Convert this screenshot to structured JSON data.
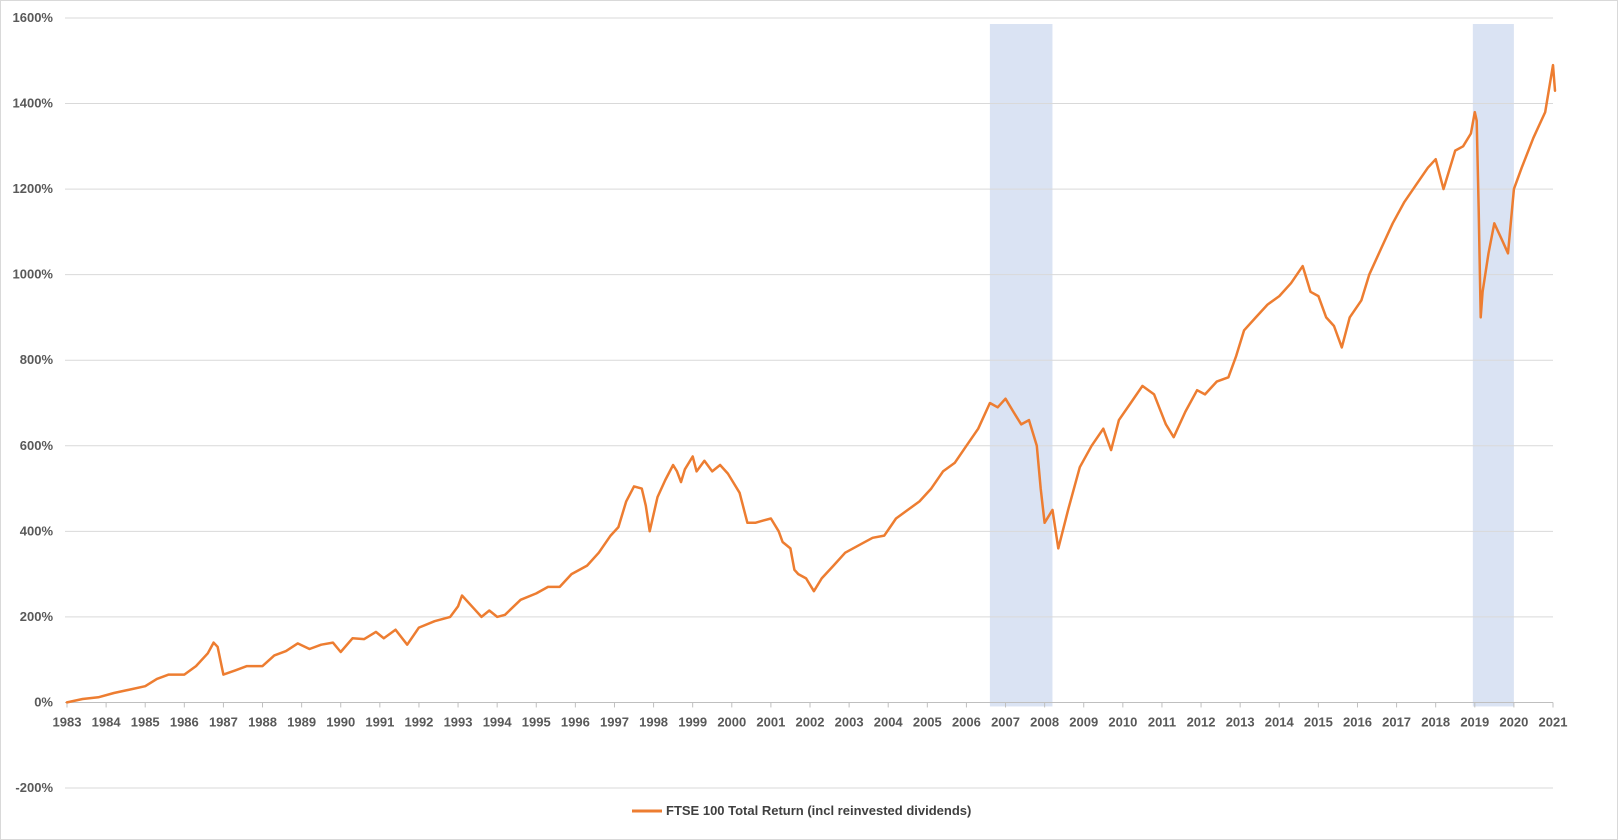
{
  "chart_data": {
    "type": "line",
    "title": "",
    "xlabel": "",
    "ylabel": "",
    "ylim": [
      -200,
      1600
    ],
    "xlim": [
      1983,
      2021
    ],
    "y_ticks": [
      -200,
      0,
      200,
      400,
      600,
      800,
      1000,
      1200,
      1400,
      1600
    ],
    "y_tick_labels": [
      "-200%",
      "0%",
      "200%",
      "400%",
      "600%",
      "800%",
      "1000%",
      "1200%",
      "1400%",
      "1600%"
    ],
    "x_ticks": [
      1983,
      1984,
      1985,
      1986,
      1987,
      1988,
      1989,
      1990,
      1991,
      1992,
      1993,
      1994,
      1995,
      1996,
      1997,
      1998,
      1999,
      2000,
      2001,
      2002,
      2003,
      2004,
      2005,
      2006,
      2007,
      2008,
      2009,
      2010,
      2011,
      2012,
      2013,
      2014,
      2015,
      2016,
      2017,
      2018,
      2019,
      2020,
      2021
    ],
    "x_tick_labels": [
      "1983",
      "1984",
      "1985",
      "1986",
      "1987",
      "1988",
      "1989",
      "1990",
      "1991",
      "1992",
      "1993",
      "1994",
      "1995",
      "1996",
      "1997",
      "1998",
      "1999",
      "2000",
      "2001",
      "2002",
      "2003",
      "2004",
      "2005",
      "2006",
      "2007",
      "2008",
      "2009",
      "2010",
      "2011",
      "2012",
      "2013",
      "2014",
      "2015",
      "2016",
      "2017",
      "2018",
      "2019",
      "2020",
      "2021"
    ],
    "grid": "horizontal",
    "legend_position": "bottom",
    "shaded_regions": [
      {
        "x0": 2006.6,
        "x1": 2008.2,
        "color": "#dae3f3"
      },
      {
        "x0": 2018.95,
        "x1": 2020.0,
        "color": "#dae3f3"
      }
    ],
    "series": [
      {
        "name": "FTSE 100 Total Return (incl reinvested dividends)",
        "color": "#ed7d31",
        "points": [
          [
            1983.0,
            0
          ],
          [
            1983.4,
            8
          ],
          [
            1983.8,
            12
          ],
          [
            1984.2,
            22
          ],
          [
            1984.6,
            30
          ],
          [
            1985.0,
            38
          ],
          [
            1985.3,
            55
          ],
          [
            1985.6,
            65
          ],
          [
            1986.0,
            65
          ],
          [
            1986.3,
            85
          ],
          [
            1986.6,
            115
          ],
          [
            1986.75,
            140
          ],
          [
            1986.85,
            130
          ],
          [
            1987.0,
            65
          ],
          [
            1987.3,
            75
          ],
          [
            1987.6,
            85
          ],
          [
            1988.0,
            85
          ],
          [
            1988.3,
            110
          ],
          [
            1988.6,
            120
          ],
          [
            1988.9,
            138
          ],
          [
            1989.2,
            125
          ],
          [
            1989.5,
            135
          ],
          [
            1989.8,
            140
          ],
          [
            1990.0,
            118
          ],
          [
            1990.3,
            150
          ],
          [
            1990.6,
            148
          ],
          [
            1990.9,
            165
          ],
          [
            1991.1,
            150
          ],
          [
            1991.4,
            170
          ],
          [
            1991.7,
            135
          ],
          [
            1992.0,
            175
          ],
          [
            1992.4,
            190
          ],
          [
            1992.8,
            200
          ],
          [
            1993.0,
            225
          ],
          [
            1993.1,
            250
          ],
          [
            1993.4,
            220
          ],
          [
            1993.6,
            200
          ],
          [
            1993.8,
            215
          ],
          [
            1994.0,
            200
          ],
          [
            1994.2,
            205
          ],
          [
            1994.6,
            240
          ],
          [
            1995.0,
            255
          ],
          [
            1995.3,
            270
          ],
          [
            1995.6,
            270
          ],
          [
            1995.9,
            300
          ],
          [
            1996.3,
            320
          ],
          [
            1996.6,
            350
          ],
          [
            1996.9,
            390
          ],
          [
            1997.1,
            410
          ],
          [
            1997.3,
            470
          ],
          [
            1997.5,
            505
          ],
          [
            1997.7,
            500
          ],
          [
            1997.8,
            460
          ],
          [
            1997.9,
            400
          ],
          [
            1998.1,
            480
          ],
          [
            1998.3,
            520
          ],
          [
            1998.5,
            555
          ],
          [
            1998.6,
            540
          ],
          [
            1998.7,
            515
          ],
          [
            1998.8,
            545
          ],
          [
            1999.0,
            575
          ],
          [
            1999.1,
            540
          ],
          [
            1999.3,
            565
          ],
          [
            1999.5,
            540
          ],
          [
            1999.7,
            555
          ],
          [
            1999.9,
            535
          ],
          [
            2000.0,
            520
          ],
          [
            2000.2,
            490
          ],
          [
            2000.4,
            420
          ],
          [
            2000.6,
            420
          ],
          [
            2000.8,
            425
          ],
          [
            2001.0,
            430
          ],
          [
            2001.2,
            400
          ],
          [
            2001.3,
            375
          ],
          [
            2001.5,
            360
          ],
          [
            2001.6,
            310
          ],
          [
            2001.7,
            300
          ],
          [
            2001.9,
            290
          ],
          [
            2002.1,
            260
          ],
          [
            2002.3,
            290
          ],
          [
            2002.6,
            320
          ],
          [
            2002.9,
            350
          ],
          [
            2003.3,
            370
          ],
          [
            2003.6,
            385
          ],
          [
            2003.9,
            390
          ],
          [
            2004.2,
            430
          ],
          [
            2004.5,
            450
          ],
          [
            2004.8,
            470
          ],
          [
            2005.1,
            500
          ],
          [
            2005.4,
            540
          ],
          [
            2005.7,
            560
          ],
          [
            2006.0,
            600
          ],
          [
            2006.3,
            640
          ],
          [
            2006.6,
            700
          ],
          [
            2006.8,
            690
          ],
          [
            2007.0,
            710
          ],
          [
            2007.2,
            680
          ],
          [
            2007.4,
            650
          ],
          [
            2007.6,
            660
          ],
          [
            2007.8,
            600
          ],
          [
            2007.9,
            500
          ],
          [
            2008.0,
            420
          ],
          [
            2008.2,
            450
          ],
          [
            2008.35,
            360
          ],
          [
            2008.6,
            450
          ],
          [
            2008.9,
            550
          ],
          [
            2009.2,
            600
          ],
          [
            2009.5,
            640
          ],
          [
            2009.7,
            590
          ],
          [
            2009.9,
            660
          ],
          [
            2010.2,
            700
          ],
          [
            2010.5,
            740
          ],
          [
            2010.8,
            720
          ],
          [
            2011.1,
            650
          ],
          [
            2011.3,
            620
          ],
          [
            2011.6,
            680
          ],
          [
            2011.9,
            730
          ],
          [
            2012.1,
            720
          ],
          [
            2012.4,
            750
          ],
          [
            2012.7,
            760
          ],
          [
            2012.9,
            810
          ],
          [
            2013.1,
            870
          ],
          [
            2013.4,
            900
          ],
          [
            2013.7,
            930
          ],
          [
            2014.0,
            950
          ],
          [
            2014.3,
            980
          ],
          [
            2014.6,
            1020
          ],
          [
            2014.8,
            960
          ],
          [
            2015.0,
            950
          ],
          [
            2015.2,
            900
          ],
          [
            2015.4,
            880
          ],
          [
            2015.6,
            830
          ],
          [
            2015.8,
            900
          ],
          [
            2016.1,
            940
          ],
          [
            2016.3,
            1000
          ],
          [
            2016.6,
            1060
          ],
          [
            2016.9,
            1120
          ],
          [
            2017.2,
            1170
          ],
          [
            2017.5,
            1210
          ],
          [
            2017.8,
            1250
          ],
          [
            2018.0,
            1270
          ],
          [
            2018.2,
            1200
          ],
          [
            2018.5,
            1290
          ],
          [
            2018.7,
            1300
          ],
          [
            2018.9,
            1330
          ],
          [
            2019.0,
            1380
          ],
          [
            2019.05,
            1360
          ],
          [
            2019.1,
            1150
          ],
          [
            2019.15,
            900
          ],
          [
            2019.2,
            960
          ],
          [
            2019.35,
            1050
          ],
          [
            2019.5,
            1120
          ],
          [
            2019.7,
            1080
          ],
          [
            2019.85,
            1050
          ],
          [
            2020.0,
            1200
          ],
          [
            2020.2,
            1250
          ],
          [
            2020.5,
            1320
          ],
          [
            2020.8,
            1380
          ],
          [
            2021.0,
            1490
          ],
          [
            2021.05,
            1430
          ]
        ]
      }
    ]
  }
}
